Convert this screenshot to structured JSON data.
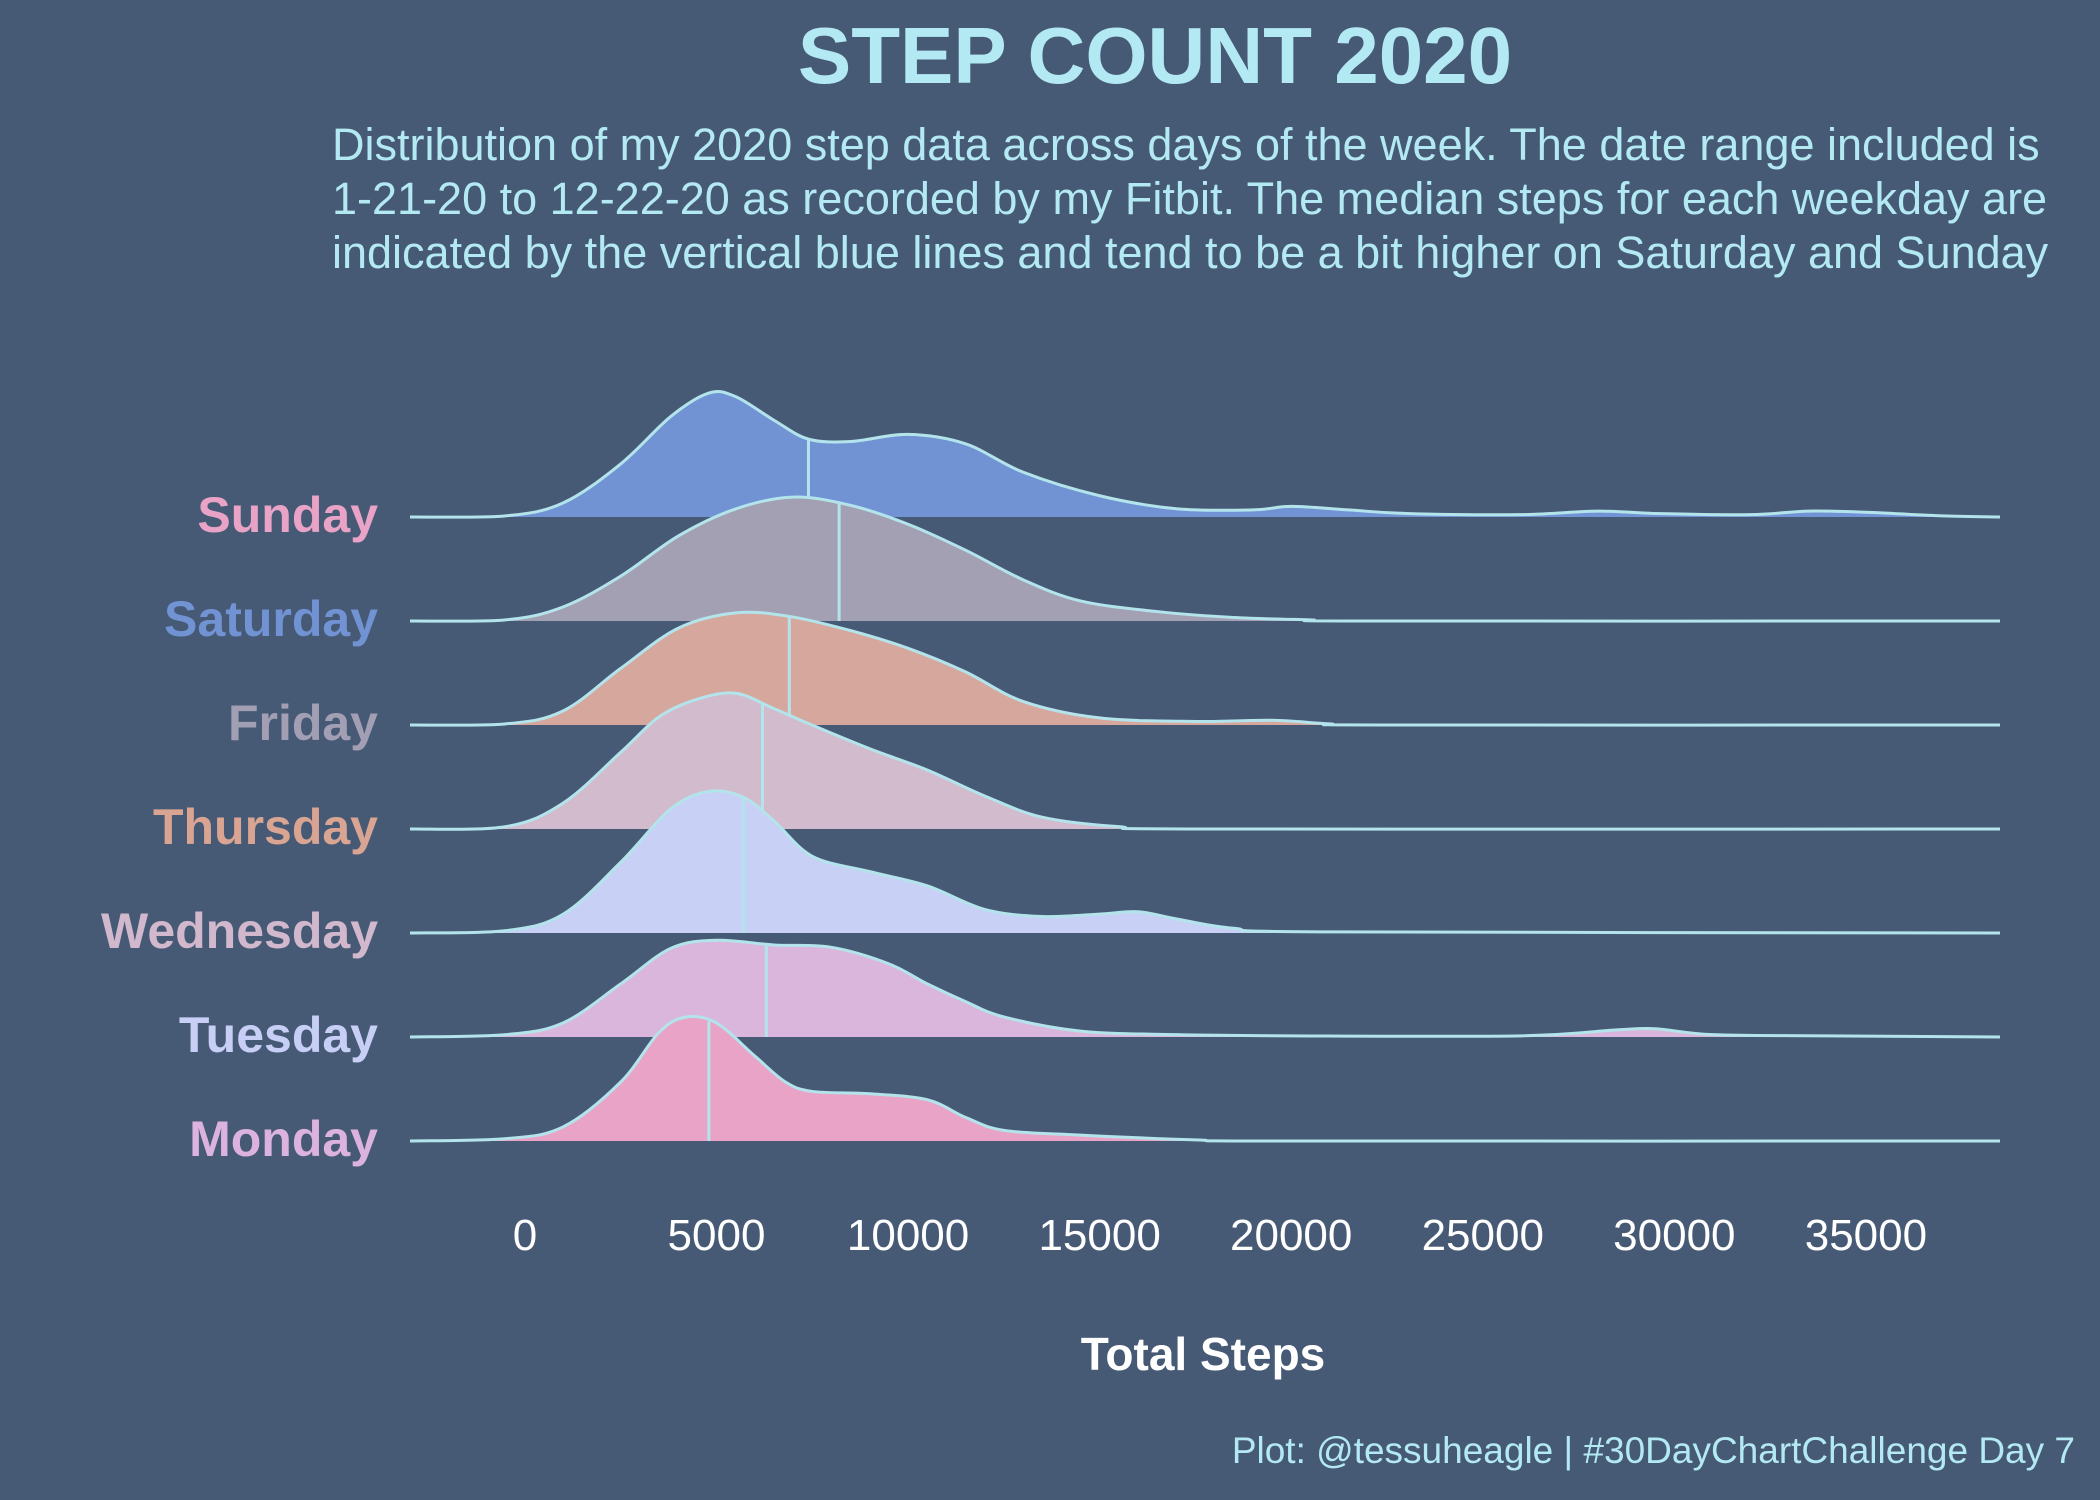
{
  "chart_data": {
    "type": "ridgeline",
    "title": "STEP COUNT 2020",
    "subtitle": "Distribution of my 2020 step data across days of the week. The date range included is 1-21-20 to 12-22-20 as recorded by my Fitbit. The median steps for each weekday are indicated by the vertical blue lines and tend to be a bit higher on Saturday and Sunday",
    "xlabel": "Total Steps",
    "caption": "Plot: @tessuheagle | #30DayChartChallenge Day 7",
    "xlim": [
      -3000,
      38500
    ],
    "xticks": [
      0,
      5000,
      10000,
      15000,
      20000,
      25000,
      30000,
      35000
    ],
    "median_line_color": "#b3e4ec",
    "outline_color": "#b3e4ec",
    "background_color": "#475a75",
    "series": [
      {
        "name": "Monday",
        "label_color": "#dcb2de",
        "fill": "#e8a3c6",
        "median": 4800,
        "points": [
          [
            -3000,
            0
          ],
          [
            -500,
            0.02
          ],
          [
            1000,
            0.12
          ],
          [
            2500,
            0.5
          ],
          [
            3500,
            0.92
          ],
          [
            4200,
            1.05
          ],
          [
            5000,
            1.0
          ],
          [
            6000,
            0.72
          ],
          [
            6800,
            0.5
          ],
          [
            7500,
            0.42
          ],
          [
            9000,
            0.4
          ],
          [
            10500,
            0.35
          ],
          [
            11500,
            0.2
          ],
          [
            12500,
            0.09
          ],
          [
            14500,
            0.05
          ],
          [
            17500,
            0.01
          ],
          [
            20000,
            0
          ],
          [
            38500,
            0
          ]
        ]
      },
      {
        "name": "Tuesday",
        "label_color": "#c7cff6",
        "fill": "#dab5dc",
        "median": 6300,
        "points": [
          [
            -3000,
            0
          ],
          [
            -500,
            0.02
          ],
          [
            1000,
            0.12
          ],
          [
            2500,
            0.45
          ],
          [
            3800,
            0.75
          ],
          [
            5000,
            0.82
          ],
          [
            6500,
            0.78
          ],
          [
            8000,
            0.76
          ],
          [
            9500,
            0.62
          ],
          [
            10500,
            0.45
          ],
          [
            11500,
            0.3
          ],
          [
            12500,
            0.17
          ],
          [
            14500,
            0.05
          ],
          [
            17000,
            0.02
          ],
          [
            20000,
            0.01
          ],
          [
            26000,
            0.01
          ],
          [
            28500,
            0.06
          ],
          [
            29500,
            0.07
          ],
          [
            31000,
            0.02
          ],
          [
            34000,
            0.01
          ],
          [
            38500,
            0
          ]
        ]
      },
      {
        "name": "Wednesday",
        "label_color": "#d2b8cd",
        "fill": "#c8d0f6",
        "median": 5700,
        "points": [
          [
            -3000,
            0
          ],
          [
            -500,
            0.02
          ],
          [
            1000,
            0.16
          ],
          [
            2500,
            0.6
          ],
          [
            3800,
            1.05
          ],
          [
            4800,
            1.2
          ],
          [
            5700,
            1.15
          ],
          [
            6500,
            0.95
          ],
          [
            7500,
            0.65
          ],
          [
            9000,
            0.52
          ],
          [
            10500,
            0.4
          ],
          [
            12000,
            0.2
          ],
          [
            13500,
            0.14
          ],
          [
            15000,
            0.16
          ],
          [
            16000,
            0.18
          ],
          [
            17000,
            0.12
          ],
          [
            18500,
            0.04
          ],
          [
            21000,
            0.01
          ],
          [
            38500,
            0
          ]
        ]
      },
      {
        "name": "Thursday",
        "label_color": "#d9a592",
        "fill": "#d2bbcc",
        "median": 6200,
        "points": [
          [
            -3000,
            0
          ],
          [
            -500,
            0.02
          ],
          [
            1000,
            0.22
          ],
          [
            2500,
            0.65
          ],
          [
            3500,
            0.95
          ],
          [
            4500,
            1.1
          ],
          [
            5500,
            1.15
          ],
          [
            6500,
            1.02
          ],
          [
            7500,
            0.88
          ],
          [
            9000,
            0.68
          ],
          [
            10500,
            0.5
          ],
          [
            12000,
            0.28
          ],
          [
            13500,
            0.1
          ],
          [
            15500,
            0.02
          ],
          [
            18000,
            0
          ],
          [
            38500,
            0
          ]
        ]
      },
      {
        "name": "Friday",
        "label_color": "#a29fb4",
        "fill": "#d6a79c",
        "median": 6900,
        "points": [
          [
            -3000,
            0
          ],
          [
            -500,
            0.01
          ],
          [
            1000,
            0.12
          ],
          [
            2500,
            0.48
          ],
          [
            4000,
            0.82
          ],
          [
            5500,
            0.95
          ],
          [
            6900,
            0.92
          ],
          [
            8500,
            0.8
          ],
          [
            10000,
            0.65
          ],
          [
            11500,
            0.45
          ],
          [
            13000,
            0.2
          ],
          [
            15000,
            0.06
          ],
          [
            17500,
            0.03
          ],
          [
            19500,
            0.04
          ],
          [
            21000,
            0.01
          ],
          [
            22500,
            0
          ],
          [
            38500,
            0
          ]
        ]
      },
      {
        "name": "Saturday",
        "label_color": "#7193d4",
        "fill": "#a3a0b4",
        "median": 8200,
        "points": [
          [
            -3000,
            0
          ],
          [
            -500,
            0.01
          ],
          [
            1000,
            0.12
          ],
          [
            2500,
            0.38
          ],
          [
            4000,
            0.72
          ],
          [
            5500,
            0.95
          ],
          [
            7000,
            1.05
          ],
          [
            8500,
            0.98
          ],
          [
            10000,
            0.82
          ],
          [
            11500,
            0.6
          ],
          [
            13000,
            0.35
          ],
          [
            14500,
            0.17
          ],
          [
            16500,
            0.08
          ],
          [
            18500,
            0.03
          ],
          [
            20500,
            0.01
          ],
          [
            22000,
            0
          ],
          [
            38500,
            0
          ]
        ]
      },
      {
        "name": "Sunday",
        "label_color": "#e8a3c6",
        "fill": "#7193d4",
        "median": 7400,
        "points": [
          [
            -3000,
            0
          ],
          [
            -500,
            0.01
          ],
          [
            1000,
            0.12
          ],
          [
            2500,
            0.45
          ],
          [
            3800,
            0.85
          ],
          [
            4800,
            1.05
          ],
          [
            5500,
            1.02
          ],
          [
            6500,
            0.82
          ],
          [
            7400,
            0.66
          ],
          [
            8500,
            0.64
          ],
          [
            10000,
            0.7
          ],
          [
            11500,
            0.62
          ],
          [
            13000,
            0.38
          ],
          [
            15000,
            0.18
          ],
          [
            17000,
            0.07
          ],
          [
            19000,
            0.06
          ],
          [
            20000,
            0.09
          ],
          [
            21500,
            0.06
          ],
          [
            23000,
            0.03
          ],
          [
            26000,
            0.02
          ],
          [
            28000,
            0.05
          ],
          [
            29500,
            0.03
          ],
          [
            32000,
            0.02
          ],
          [
            33500,
            0.05
          ],
          [
            35000,
            0.04
          ],
          [
            37000,
            0.01
          ],
          [
            38500,
            0
          ]
        ]
      }
    ]
  }
}
